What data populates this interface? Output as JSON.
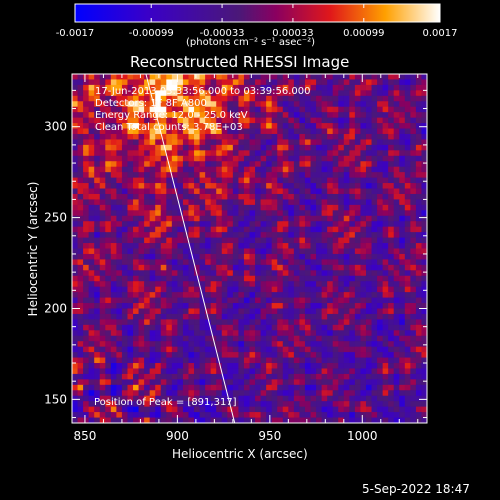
{
  "chart_data": {
    "type": "heatmap",
    "title": "Reconstructed RHESSI Image",
    "xlabel": "Heliocentric X (arcsec)",
    "ylabel": "Heliocentric Y (arcsec)",
    "xlim": [
      843,
      1035
    ],
    "ylim": [
      137,
      329
    ],
    "x_ticks": [
      850,
      900,
      950,
      1000
    ],
    "y_ticks": [
      150,
      200,
      250,
      300
    ],
    "colorbar": {
      "ticks": [
        "-0.0017",
        "-0.00099",
        "-0.00033",
        "0.00033",
        "0.00099",
        "0.0017"
      ],
      "unit_label": "(photons cm⁻² s⁻¹ asec⁻²)",
      "range": [
        -0.0017,
        0.0017
      ]
    },
    "annotations": [
      "17-Jun-2013 03:33:56.000 to 03:39:56.000",
      "Detectors: 1F 8F A800",
      "Energy Range: 12.0 - 25.0 keV",
      "Clean     Total counts: 3.78E+03"
    ],
    "peak_label": "Position of Peak = [891,317]",
    "peak": [
      891,
      317
    ],
    "limb_line": [
      [
        883,
        329
      ],
      [
        931,
        137
      ]
    ],
    "grid": false
  },
  "footer": {
    "date": "5-Sep-2022 18:47"
  }
}
